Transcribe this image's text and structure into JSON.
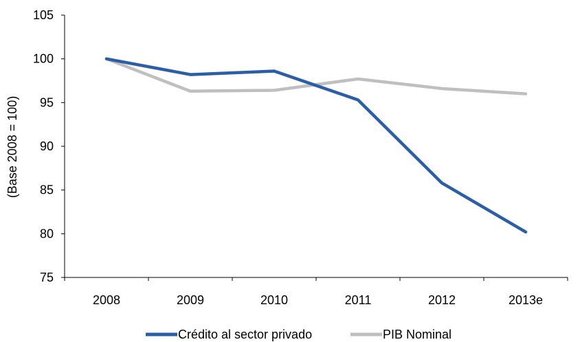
{
  "chart_data": {
    "type": "line",
    "title": "",
    "xlabel": "",
    "ylabel": "(Base 2008 = 100)",
    "categories": [
      "2008",
      "2009",
      "2010",
      "2011",
      "2012",
      "2013e"
    ],
    "ylim": [
      75,
      105
    ],
    "yticks": [
      75,
      80,
      85,
      90,
      95,
      100,
      105
    ],
    "grid": false,
    "legend_position": "bottom",
    "series": [
      {
        "name": "Crédito al sector privado",
        "color": "#2a5ea8",
        "values": [
          100,
          98.2,
          98.6,
          95.3,
          85.8,
          80.2
        ]
      },
      {
        "name": "PIB Nominal",
        "color": "#bfbfbf",
        "values": [
          100,
          96.3,
          96.4,
          97.7,
          96.6,
          96.0
        ]
      }
    ]
  }
}
